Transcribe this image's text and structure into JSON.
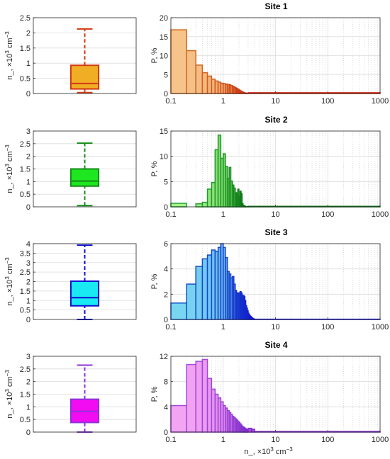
{
  "chart_data": [
    {
      "type": "box",
      "panel": "box-1",
      "ylabel": "n_, ×10",
      "ylabel_sup": "3",
      "ylabel_unit": " cm",
      "ylabel_unit_sup": "−3",
      "yticks": [
        "0",
        "0.5",
        "1",
        "1.5",
        "2",
        "2.5"
      ],
      "ylim": [
        0,
        2.5
      ],
      "whisker_low": 0.03,
      "q1": 0.15,
      "median": 0.33,
      "q3": 0.93,
      "whisker_high": 2.13,
      "fill": "#f0ae25",
      "edge": "#d23a12",
      "grid": true
    },
    {
      "type": "bar",
      "panel": "hist-1",
      "title": "Site 1",
      "ylabel": "P, %",
      "xscale": "log",
      "xlim": [
        0.1,
        1000
      ],
      "ylim": [
        0,
        20
      ],
      "xticks": [
        "0.1",
        "1",
        "10",
        "100",
        "1000"
      ],
      "yticks": [
        "0",
        "5",
        "10",
        "15",
        "20"
      ],
      "bin_edges": [
        0.1,
        0.2,
        0.3,
        0.4,
        0.5,
        0.6,
        0.7,
        0.8,
        0.9,
        1.0,
        1.1,
        1.2,
        1.3,
        1.4,
        1.5,
        1.6,
        1.7,
        1.8,
        1.9,
        2.0,
        2.1,
        2.2,
        2.3,
        2.4,
        2.5,
        2.6,
        2.7,
        2.8,
        2.9,
        3.0,
        1000
      ],
      "values": [
        16.8,
        11.3,
        7.5,
        5.5,
        4.6,
        3.8,
        3.3,
        3.0,
        2.7,
        2.6,
        2.5,
        2.4,
        2.3,
        2.1,
        1.9,
        1.7,
        1.5,
        1.3,
        1.1,
        0.9,
        0.7,
        0.55,
        0.4,
        0.3,
        0.2,
        0.15,
        0.1,
        0.06,
        0.04,
        0.2
      ],
      "fill_start": "#f6c48b",
      "fill_end": "#e25a2a",
      "edge_start": "#d2691e",
      "edge_end": "#c8200c",
      "grid": true
    },
    {
      "type": "box",
      "panel": "box-2",
      "ylabel": "n_, ×10",
      "ylabel_sup": "3",
      "ylabel_unit": " cm",
      "ylabel_unit_sup": "−3",
      "yticks": [
        "0",
        "0.5",
        "1",
        "1.5",
        "2",
        "2.5",
        "3"
      ],
      "ylim": [
        0,
        3
      ],
      "whisker_low": 0.05,
      "q1": 0.82,
      "median": 1.02,
      "q3": 1.5,
      "whisker_high": 2.52,
      "fill": "#1ee620",
      "edge": "#158c18",
      "grid": true
    },
    {
      "type": "bar",
      "panel": "hist-2",
      "title": "Site 2",
      "ylabel": "P, %",
      "xscale": "log",
      "xlim": [
        0.1,
        1000
      ],
      "ylim": [
        0,
        15
      ],
      "xticks": [
        "0.1",
        "1",
        "10",
        "100",
        "1000"
      ],
      "yticks": [
        "0",
        "5",
        "10",
        "15"
      ],
      "bin_edges": [
        0.1,
        0.2,
        0.3,
        0.4,
        0.5,
        0.6,
        0.7,
        0.8,
        0.9,
        1.0,
        1.1,
        1.2,
        1.3,
        1.4,
        1.5,
        1.6,
        1.7,
        1.8,
        1.9,
        2.0,
        2.1,
        2.2,
        2.3,
        2.4,
        2.5,
        2.6,
        2.7,
        3.0,
        1000
      ],
      "values": [
        0.7,
        0.0,
        0.6,
        0.9,
        3.5,
        4.8,
        11.3,
        14.2,
        9.6,
        10.5,
        8.0,
        5.6,
        7.8,
        5.1,
        4.3,
        3.7,
        2.8,
        2.6,
        3.5,
        2.1,
        3.1,
        2.6,
        0.6,
        0.3,
        0.2,
        0.1,
        0.05,
        0.1
      ],
      "fill_start": "#a6f28b",
      "fill_end": "#19a81c",
      "edge_start": "#27a332",
      "edge_end": "#0b6e12",
      "grid": true
    },
    {
      "type": "box",
      "panel": "box-3",
      "ylabel": "n_, ×10",
      "ylabel_sup": "3",
      "ylabel_unit": " cm",
      "ylabel_unit_sup": "−3",
      "yticks": [
        "0",
        "0.5",
        "1",
        "1.5",
        "2",
        "2.5",
        "3",
        "3.5",
        "4"
      ],
      "ylim": [
        0,
        4
      ],
      "whisker_low": 0.0,
      "q1": 0.72,
      "median": 1.15,
      "q3": 2.02,
      "whisker_high": 3.92,
      "fill": "#18e9f2",
      "edge": "#1010d0",
      "grid": true
    },
    {
      "type": "bar",
      "panel": "hist-3",
      "title": "Site 3",
      "ylabel": "P, %",
      "xscale": "log",
      "xlim": [
        0.1,
        1000
      ],
      "ylim": [
        0,
        6
      ],
      "xticks": [
        "0.1",
        "1",
        "10",
        "100",
        "1000"
      ],
      "yticks": [
        "0",
        "2",
        "4",
        "6"
      ],
      "bin_edges": [
        0.1,
        0.2,
        0.3,
        0.4,
        0.5,
        0.6,
        0.7,
        0.8,
        0.9,
        1.0,
        1.1,
        1.2,
        1.3,
        1.4,
        1.5,
        1.6,
        1.7,
        1.8,
        1.9,
        2.0,
        2.1,
        2.2,
        2.3,
        2.4,
        2.5,
        2.6,
        2.7,
        2.8,
        2.9,
        3.0,
        3.1,
        3.2,
        3.3,
        3.4,
        3.5,
        3.6,
        3.7,
        3.8,
        3.9,
        4.0,
        1000
      ],
      "values": [
        1.3,
        2.8,
        4.2,
        4.8,
        5.1,
        5.5,
        5.4,
        5.7,
        6.0,
        5.7,
        4.9,
        3.8,
        3.6,
        3.3,
        3.4,
        2.8,
        2.3,
        2.1,
        2.1,
        2.1,
        2.2,
        2.1,
        1.9,
        1.9,
        1.8,
        1.5,
        1.1,
        0.9,
        0.7,
        0.5,
        0.4,
        0.3,
        0.25,
        0.2,
        0.15,
        0.1,
        0.06,
        0.04,
        0.02,
        0.02
      ],
      "fill_start": "#79d6f2",
      "fill_end": "#2a3fe8",
      "edge_start": "#1652c8",
      "edge_end": "#1010d0",
      "grid": true
    },
    {
      "type": "box",
      "panel": "box-4",
      "ylabel": "n_, ×10",
      "ylabel_sup": "3",
      "ylabel_unit": " cm",
      "ylabel_unit_sup": "−3",
      "yticks": [
        "0",
        "0.5",
        "1",
        "1.5",
        "2",
        "2.5",
        "3"
      ],
      "ylim": [
        0,
        3
      ],
      "whisker_low": 0.0,
      "q1": 0.38,
      "median": 0.82,
      "q3": 1.3,
      "whisker_high": 2.65,
      "fill": "#f20cf2",
      "edge": "#8b32d8",
      "grid": true
    },
    {
      "type": "bar",
      "panel": "hist-4",
      "title": "Site 4",
      "ylabel": "P, %",
      "xlabel": "n_, ×10",
      "xlabel_sup": "3",
      "xlabel_unit": " cm",
      "xlabel_unit_sup": "−3",
      "xscale": "log",
      "xlim": [
        0.1,
        1000
      ],
      "ylim": [
        0,
        12
      ],
      "xticks": [
        "0.1",
        "1",
        "10",
        "100",
        "1000"
      ],
      "yticks": [
        "0",
        "4",
        "8",
        "12"
      ],
      "bin_edges": [
        0.1,
        0.2,
        0.3,
        0.4,
        0.5,
        0.6,
        0.7,
        0.8,
        0.9,
        1.0,
        1.1,
        1.2,
        1.3,
        1.4,
        1.5,
        1.6,
        1.7,
        1.8,
        1.9,
        2.0,
        2.1,
        2.2,
        2.3,
        2.4,
        2.5,
        2.6,
        2.7,
        2.8,
        2.9,
        3.0,
        3.5,
        4.0,
        1000
      ],
      "values": [
        4.2,
        10.7,
        11.2,
        11.5,
        8.5,
        6.8,
        6.0,
        5.4,
        4.8,
        4.2,
        3.8,
        3.4,
        3.1,
        2.8,
        2.5,
        2.3,
        2.1,
        1.9,
        1.7,
        1.5,
        1.3,
        1.1,
        0.9,
        0.8,
        0.7,
        0.6,
        0.5,
        0.4,
        0.35,
        0.6,
        0.45,
        0.1
      ],
      "fill_start": "#f3a5f3",
      "fill_end": "#b540e0",
      "edge_start": "#a44bd8",
      "edge_end": "#7a2bcc",
      "grid": true
    }
  ]
}
